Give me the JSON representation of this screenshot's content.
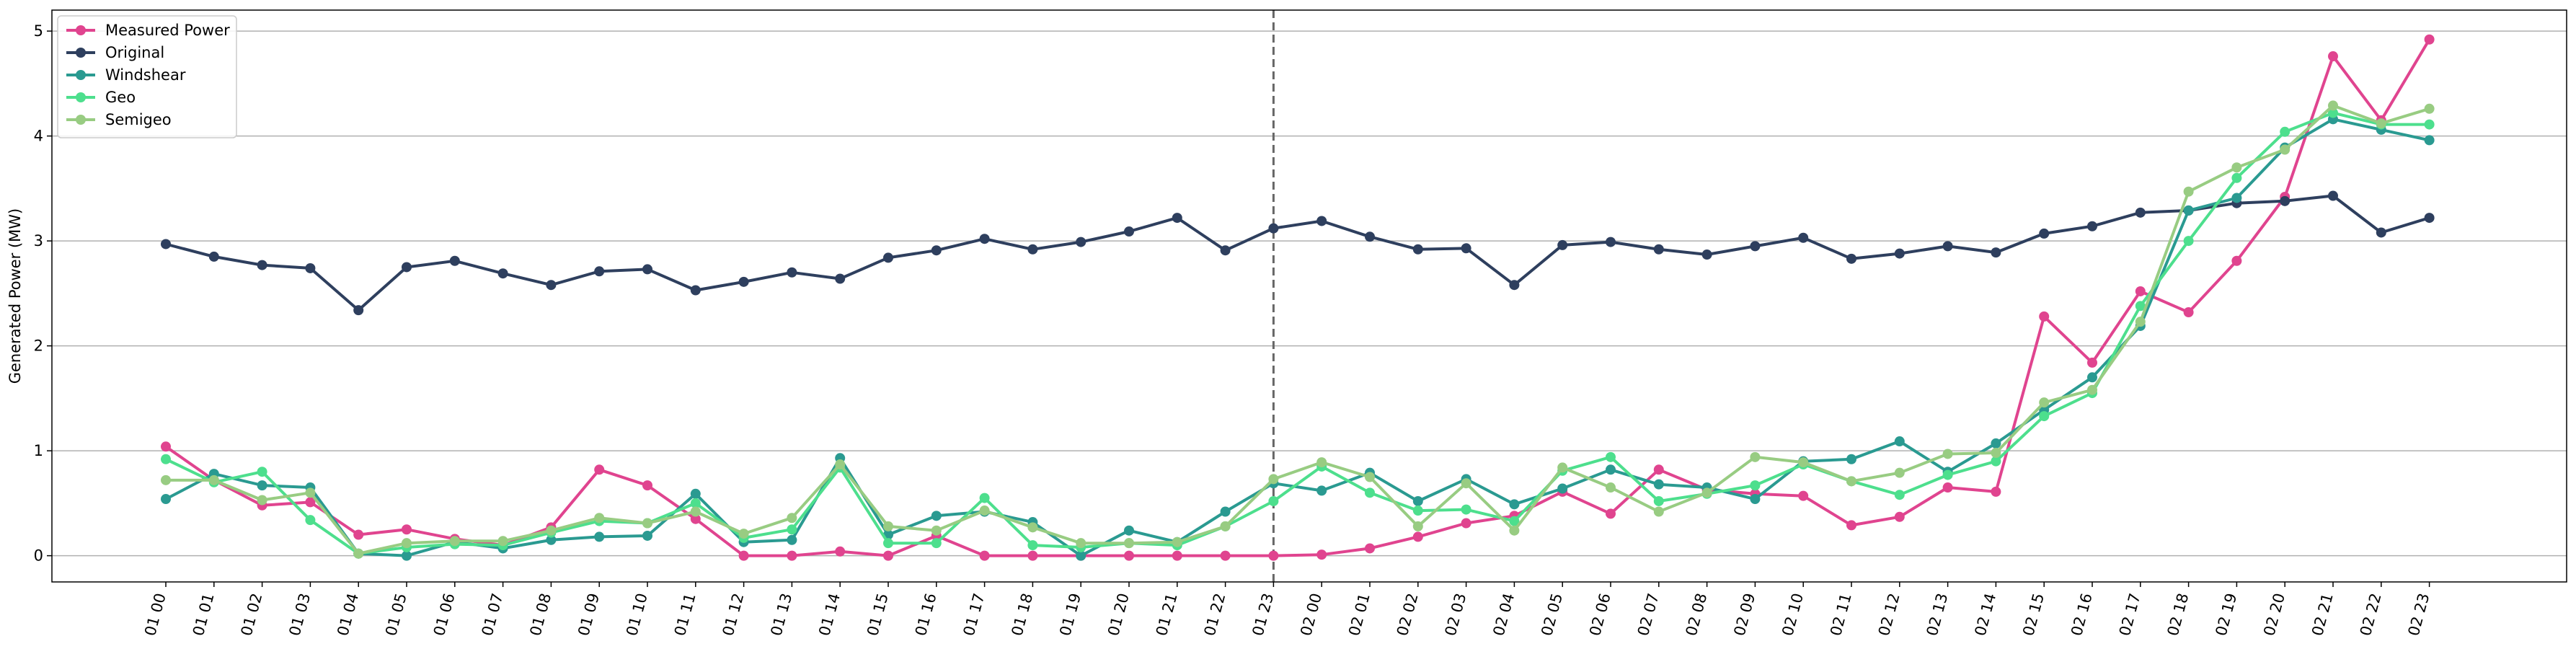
{
  "chart_data": {
    "type": "line",
    "title": "",
    "xlabel": "",
    "ylabel": "Generated Power (MW)",
    "ylim": [
      -0.25,
      5.2
    ],
    "yticks": [
      0,
      1,
      2,
      3,
      4,
      5
    ],
    "grid": "horizontal",
    "legend": "top-left",
    "vline_category": "01 23",
    "categories": [
      "01 00",
      "01 01",
      "01 02",
      "01 03",
      "01 04",
      "01 05",
      "01 06",
      "01 07",
      "01 08",
      "01 09",
      "01 10",
      "01 11",
      "01 12",
      "01 13",
      "01 14",
      "01 15",
      "01 16",
      "01 17",
      "01 18",
      "01 19",
      "01 20",
      "01 21",
      "01 22",
      "01 23",
      "02 00",
      "02 01",
      "02 02",
      "02 03",
      "02 04",
      "02 05",
      "02 06",
      "02 07",
      "02 08",
      "02 09",
      "02 10",
      "02 11",
      "02 12",
      "02 13",
      "02 14",
      "02 15",
      "02 16",
      "02 17",
      "02 18",
      "02 19",
      "02 20",
      "02 21",
      "02 22",
      "02 23"
    ],
    "series": [
      {
        "name": "Measured Power",
        "color": "#e0448f",
        "values": [
          1.04,
          0.72,
          0.48,
          0.51,
          0.2,
          0.25,
          0.16,
          0.1,
          0.27,
          0.82,
          0.67,
          0.35,
          0.0,
          0.0,
          0.04,
          0.0,
          0.19,
          0.0,
          0.0,
          0.0,
          0.0,
          0.0,
          0.0,
          0.0,
          0.01,
          0.07,
          0.18,
          0.31,
          0.38,
          0.61,
          0.4,
          0.82,
          0.63,
          0.59,
          0.57,
          0.29,
          0.37,
          0.65,
          0.61,
          2.28,
          1.84,
          2.52,
          2.32,
          2.81,
          3.42,
          4.76,
          4.15,
          4.92
        ]
      },
      {
        "name": "Original",
        "color": "#2e3f5e",
        "values": [
          2.97,
          2.85,
          2.77,
          2.74,
          2.34,
          2.75,
          2.81,
          2.69,
          2.58,
          2.71,
          2.73,
          2.53,
          2.61,
          2.7,
          2.64,
          2.84,
          2.91,
          3.02,
          2.92,
          2.99,
          3.09,
          3.22,
          2.91,
          3.12,
          3.19,
          3.04,
          2.92,
          2.93,
          2.58,
          2.96,
          2.99,
          2.92,
          2.87,
          2.95,
          3.03,
          2.83,
          2.88,
          2.95,
          2.89,
          3.07,
          3.14,
          3.27,
          3.29,
          3.36,
          3.38,
          3.43,
          3.08,
          3.22
        ]
      },
      {
        "name": "Windshear",
        "color": "#2a9a91",
        "values": [
          0.54,
          0.78,
          0.67,
          0.65,
          0.02,
          0.0,
          0.13,
          0.07,
          0.15,
          0.18,
          0.19,
          0.59,
          0.13,
          0.15,
          0.93,
          0.2,
          0.38,
          0.42,
          0.32,
          0.0,
          0.24,
          0.13,
          0.42,
          0.69,
          0.62,
          0.79,
          0.52,
          0.73,
          0.49,
          0.64,
          0.82,
          0.68,
          0.65,
          0.54,
          0.9,
          0.92,
          1.09,
          0.8,
          1.07,
          1.39,
          1.7,
          2.19,
          3.29,
          3.41,
          3.89,
          4.16,
          4.06,
          3.96
        ]
      },
      {
        "name": "Geo",
        "color": "#4ddf8d",
        "values": [
          0.92,
          0.7,
          0.8,
          0.34,
          0.02,
          0.08,
          0.11,
          0.1,
          0.22,
          0.33,
          0.31,
          0.5,
          0.17,
          0.25,
          0.84,
          0.12,
          0.12,
          0.55,
          0.1,
          0.08,
          0.12,
          0.1,
          0.28,
          0.52,
          0.85,
          0.6,
          0.43,
          0.44,
          0.33,
          0.81,
          0.94,
          0.52,
          0.59,
          0.67,
          0.87,
          0.71,
          0.58,
          0.77,
          0.9,
          1.33,
          1.55,
          2.38,
          3.0,
          3.6,
          4.04,
          4.22,
          4.11,
          4.11
        ]
      },
      {
        "name": "Semigeo",
        "color": "#98cc82",
        "values": [
          0.72,
          0.72,
          0.53,
          0.6,
          0.02,
          0.12,
          0.14,
          0.14,
          0.24,
          0.36,
          0.31,
          0.42,
          0.21,
          0.36,
          0.87,
          0.28,
          0.24,
          0.43,
          0.27,
          0.12,
          0.12,
          0.13,
          0.28,
          0.73,
          0.89,
          0.75,
          0.28,
          0.69,
          0.24,
          0.84,
          0.65,
          0.42,
          0.6,
          0.94,
          0.89,
          0.71,
          0.79,
          0.97,
          0.98,
          1.46,
          1.58,
          2.23,
          3.47,
          3.7,
          3.87,
          4.29,
          4.12,
          4.26
        ]
      }
    ]
  }
}
